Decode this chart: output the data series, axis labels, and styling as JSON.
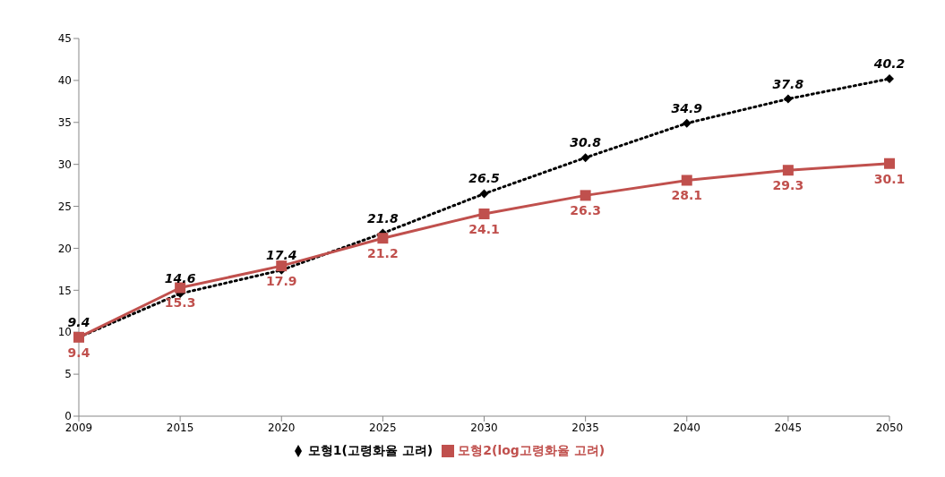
{
  "chart_data": {
    "type": "line",
    "categories": [
      "2009",
      "2015",
      "2020",
      "2025",
      "2030",
      "2035",
      "2040",
      "2045",
      "2050"
    ],
    "series": [
      {
        "name": "모형1(고령화율 고려)",
        "color": "#000000",
        "marker": "diamond",
        "line_style": "dotted",
        "values": [
          9.4,
          14.6,
          17.4,
          21.8,
          26.5,
          30.8,
          34.9,
          37.8,
          40.2
        ]
      },
      {
        "name": "모형2(log고령화율 고려)",
        "color": "#c0504d",
        "marker": "square",
        "line_style": "solid",
        "values": [
          9.4,
          15.3,
          17.9,
          21.2,
          24.1,
          26.3,
          28.1,
          29.3,
          30.1
        ]
      }
    ],
    "ylim": [
      0,
      45
    ],
    "yticks": [
      0,
      5,
      10,
      15,
      20,
      25,
      30,
      35,
      40,
      45
    ],
    "grid": false,
    "legend": "bottom",
    "data_labels": true
  }
}
